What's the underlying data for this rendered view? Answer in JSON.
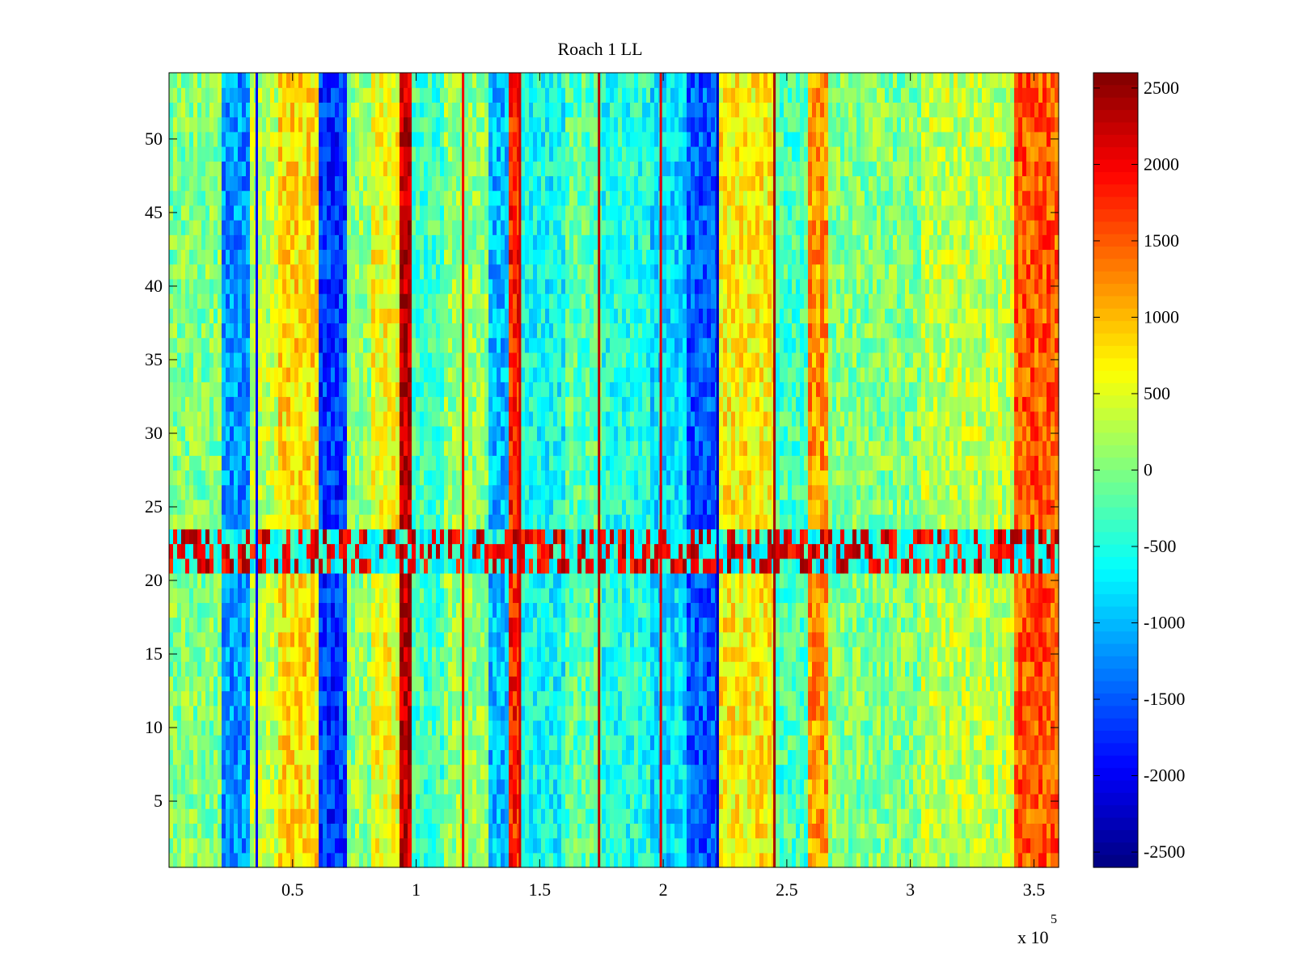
{
  "chart_data": {
    "type": "heatmap",
    "title": "Roach 1 LL",
    "xlabel": "",
    "ylabel": "",
    "x_multiplier_label": {
      "base": "x 10",
      "exponent": "5"
    },
    "xlim": [
      0,
      3.6
    ],
    "ylim": [
      0.5,
      54.5
    ],
    "x_ticks": [
      0.5,
      1,
      1.5,
      2,
      2.5,
      3,
      3.5
    ],
    "x_tick_labels": [
      "0.5",
      "1",
      "1.5",
      "2",
      "2.5",
      "3",
      "3.5"
    ],
    "y_ticks": [
      5,
      10,
      15,
      20,
      25,
      30,
      35,
      40,
      45,
      50
    ],
    "y_tick_labels": [
      "5",
      "10",
      "15",
      "20",
      "25",
      "30",
      "35",
      "40",
      "45",
      "50"
    ],
    "colormap": "jet",
    "clim": [
      -2600,
      2600
    ],
    "colorbar_ticks": [
      2500,
      2000,
      1500,
      1000,
      500,
      0,
      -500,
      -1000,
      -1500,
      -2000,
      -2500
    ],
    "colorbar_tick_labels": [
      "2500",
      "2000",
      "1500",
      "1000",
      "500",
      "0",
      "-500",
      "-1000",
      "-1500",
      "-2000",
      "-2500"
    ],
    "rows": 54,
    "column_profile": [
      {
        "x_start": 0.0,
        "x_end": 0.22,
        "value": 0
      },
      {
        "x_start": 0.22,
        "x_end": 0.33,
        "value": -1200
      },
      {
        "x_start": 0.33,
        "x_end": 0.45,
        "value": 300
      },
      {
        "x_start": 0.45,
        "x_end": 0.6,
        "value": 800
      },
      {
        "x_start": 0.6,
        "x_end": 0.72,
        "value": -1700
      },
      {
        "x_start": 0.72,
        "x_end": 0.82,
        "value": 100
      },
      {
        "x_start": 0.82,
        "x_end": 0.94,
        "value": 600
      },
      {
        "x_start": 0.94,
        "x_end": 0.98,
        "value": 2300
      },
      {
        "x_start": 0.98,
        "x_end": 1.12,
        "value": -300
      },
      {
        "x_start": 1.12,
        "x_end": 1.3,
        "value": 100
      },
      {
        "x_start": 1.3,
        "x_end": 1.38,
        "value": -1000
      },
      {
        "x_start": 1.38,
        "x_end": 1.42,
        "value": 1800
      },
      {
        "x_start": 1.42,
        "x_end": 1.6,
        "value": -600
      },
      {
        "x_start": 1.6,
        "x_end": 1.75,
        "value": -200
      },
      {
        "x_start": 1.75,
        "x_end": 1.95,
        "value": -500
      },
      {
        "x_start": 1.95,
        "x_end": 2.1,
        "value": -800
      },
      {
        "x_start": 2.1,
        "x_end": 2.22,
        "value": -1500
      },
      {
        "x_start": 2.22,
        "x_end": 2.45,
        "value": 700
      },
      {
        "x_start": 2.45,
        "x_end": 2.58,
        "value": -300
      },
      {
        "x_start": 2.58,
        "x_end": 2.67,
        "value": 1200
      },
      {
        "x_start": 2.67,
        "x_end": 3.05,
        "value": 0
      },
      {
        "x_start": 3.05,
        "x_end": 3.42,
        "value": 300
      },
      {
        "x_start": 3.42,
        "x_end": 3.6,
        "value": 1500
      }
    ],
    "thin_vertical_lines": [
      {
        "x": 0.355,
        "value": -2000
      },
      {
        "x": 1.19,
        "value": 2000
      },
      {
        "x": 1.42,
        "value": 2200
      },
      {
        "x": 1.74,
        "value": 2300
      },
      {
        "x": 1.99,
        "value": 2100
      },
      {
        "x": 2.22,
        "value": -2300
      },
      {
        "x": 2.45,
        "value": 2400
      }
    ],
    "horizontal_band": {
      "y_start": 20.5,
      "y_end": 23.5,
      "note": "rows 21-23 show elevated, alternating high/low values"
    }
  }
}
